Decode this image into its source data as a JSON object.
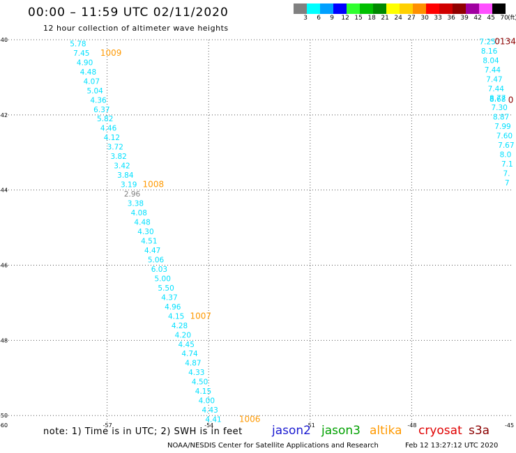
{
  "header": {
    "title": "00:00 – 11:59 UTC 02/11/2020",
    "subtitle": "12 hour collection of altimeter wave heights"
  },
  "color_scale": {
    "unit": "(ft)",
    "bins": [
      {
        "label": "3",
        "color": "#808080"
      },
      {
        "label": "6",
        "color": "#00ffff"
      },
      {
        "label": "9",
        "color": "#00a0ff"
      },
      {
        "label": "12",
        "color": "#0000ff"
      },
      {
        "label": "15",
        "color": "#30ff30"
      },
      {
        "label": "18",
        "color": "#00c000"
      },
      {
        "label": "21",
        "color": "#008800"
      },
      {
        "label": "24",
        "color": "#ffff00"
      },
      {
        "label": "27",
        "color": "#ffd000"
      },
      {
        "label": "30",
        "color": "#ff9000"
      },
      {
        "label": "33",
        "color": "#ff0000"
      },
      {
        "label": "36",
        "color": "#d00000"
      },
      {
        "label": "39",
        "color": "#900000"
      },
      {
        "label": "42",
        "color": "#a000a0"
      },
      {
        "label": "45",
        "color": "#ff50ff"
      },
      {
        "label": "70",
        "color": "#000000"
      }
    ]
  },
  "chart_data": {
    "type": "scatter",
    "axes": {
      "x_ticks": [
        "-57",
        "-54",
        "-51",
        "-48",
        "-45"
      ],
      "y_ticks": [
        "-40",
        "-42",
        "-44",
        "-46",
        "-48",
        "-50"
      ],
      "corner_label": "-60",
      "xlim": [
        -60,
        -45
      ],
      "ylim": [
        -50.2,
        -40
      ]
    },
    "tracks": [
      {
        "satellite": "altika",
        "color": "#00e0ff",
        "points": [
          {
            "lon": -58.1,
            "lat": -40.1,
            "swh": "5.78"
          },
          {
            "lon": -58.0,
            "lat": -40.35,
            "swh": "7.45"
          },
          {
            "lon": -57.9,
            "lat": -40.6,
            "swh": "4.90"
          },
          {
            "lon": -57.8,
            "lat": -40.85,
            "swh": "4.48"
          },
          {
            "lon": -57.7,
            "lat": -41.1,
            "swh": "4.07"
          },
          {
            "lon": -57.6,
            "lat": -41.35,
            "swh": "5.04"
          },
          {
            "lon": -57.5,
            "lat": -41.6,
            "swh": "4.36"
          },
          {
            "lon": -57.4,
            "lat": -41.85,
            "swh": "6.37"
          },
          {
            "lon": -57.3,
            "lat": -42.1,
            "swh": "5.82"
          },
          {
            "lon": -57.2,
            "lat": -42.35,
            "swh": "4.46"
          },
          {
            "lon": -57.1,
            "lat": -42.6,
            "swh": "4.12"
          },
          {
            "lon": -57.0,
            "lat": -42.85,
            "swh": "3.72"
          },
          {
            "lon": -56.9,
            "lat": -43.1,
            "swh": "3.82"
          },
          {
            "lon": -56.8,
            "lat": -43.35,
            "swh": "3.42"
          },
          {
            "lon": -56.7,
            "lat": -43.6,
            "swh": "3.84"
          },
          {
            "lon": -56.6,
            "lat": -43.85,
            "swh": "3.19"
          },
          {
            "lon": -56.5,
            "lat": -44.1,
            "swh": "2.96",
            "color": "#808080"
          },
          {
            "lon": -56.4,
            "lat": -44.35,
            "swh": "3.38"
          },
          {
            "lon": -56.3,
            "lat": -44.6,
            "swh": "4.08"
          },
          {
            "lon": -56.2,
            "lat": -44.85,
            "swh": "4.48"
          },
          {
            "lon": -56.1,
            "lat": -45.1,
            "swh": "4.30"
          },
          {
            "lon": -56.0,
            "lat": -45.35,
            "swh": "4.51"
          },
          {
            "lon": -55.9,
            "lat": -45.6,
            "swh": "4.47"
          },
          {
            "lon": -55.8,
            "lat": -45.85,
            "swh": "5.06"
          },
          {
            "lon": -55.7,
            "lat": -46.1,
            "swh": "6.03"
          },
          {
            "lon": -55.6,
            "lat": -46.35,
            "swh": "5.00"
          },
          {
            "lon": -55.5,
            "lat": -46.6,
            "swh": "5.50"
          },
          {
            "lon": -55.4,
            "lat": -46.85,
            "swh": "4.37"
          },
          {
            "lon": -55.3,
            "lat": -47.1,
            "swh": "4.96"
          },
          {
            "lon": -55.2,
            "lat": -47.35,
            "swh": "4.15"
          },
          {
            "lon": -55.1,
            "lat": -47.6,
            "swh": "4.28"
          },
          {
            "lon": -55.0,
            "lat": -47.85,
            "swh": "4.20"
          },
          {
            "lon": -54.9,
            "lat": -48.1,
            "swh": "4.45"
          },
          {
            "lon": -54.8,
            "lat": -48.35,
            "swh": "4.74"
          },
          {
            "lon": -54.7,
            "lat": -48.6,
            "swh": "4.87"
          },
          {
            "lon": -54.6,
            "lat": -48.85,
            "swh": "4.33"
          },
          {
            "lon": -54.5,
            "lat": -49.1,
            "swh": "4.50"
          },
          {
            "lon": -54.4,
            "lat": -49.35,
            "swh": "4.15"
          },
          {
            "lon": -54.3,
            "lat": -49.6,
            "swh": "4.00"
          },
          {
            "lon": -54.2,
            "lat": -49.85,
            "swh": "4.43"
          },
          {
            "lon": -54.1,
            "lat": -50.1,
            "swh": "4.41"
          }
        ]
      },
      {
        "satellite": "altika",
        "color": "#00e0ff",
        "points": [
          {
            "lon": -46.0,
            "lat": -40.05,
            "swh": "7.25"
          },
          {
            "lon": -45.95,
            "lat": -40.3,
            "swh": "8.16"
          },
          {
            "lon": -45.9,
            "lat": -40.55,
            "swh": "8.04"
          },
          {
            "lon": -45.85,
            "lat": -40.8,
            "swh": "7.44"
          },
          {
            "lon": -45.8,
            "lat": -41.05,
            "swh": "7.47"
          },
          {
            "lon": -45.75,
            "lat": -41.3,
            "swh": "7.44"
          },
          {
            "lon": -45.7,
            "lat": -41.55,
            "swh": "8.77"
          },
          {
            "lon": -45.7,
            "lat": -41.58,
            "swh": "8.68"
          },
          {
            "lon": -45.65,
            "lat": -41.8,
            "swh": "7.30"
          },
          {
            "lon": -45.6,
            "lat": -42.05,
            "swh": "8.87"
          },
          {
            "lon": -45.55,
            "lat": -42.3,
            "swh": "7.99"
          },
          {
            "lon": -45.5,
            "lat": -42.55,
            "swh": "7.60"
          },
          {
            "lon": -45.45,
            "lat": -42.8,
            "swh": "7.67"
          },
          {
            "lon": -45.4,
            "lat": -43.05,
            "swh": "8.0"
          },
          {
            "lon": -45.35,
            "lat": -43.3,
            "swh": "7.1"
          },
          {
            "lon": -45.3,
            "lat": -43.55,
            "swh": "7."
          },
          {
            "lon": -45.25,
            "lat": -43.8,
            "swh": "7"
          }
        ]
      }
    ],
    "pressure_labels": [
      {
        "lon": -57.2,
        "lat": -40.35,
        "text": "1009",
        "color": "#ff9900"
      },
      {
        "lon": -55.95,
        "lat": -43.85,
        "text": "1008",
        "color": "#ff9900"
      },
      {
        "lon": -54.55,
        "lat": -47.35,
        "text": "1007",
        "color": "#ff9900"
      },
      {
        "lon": -53.1,
        "lat": -50.1,
        "text": "1006",
        "color": "#ff9900"
      },
      {
        "lon": -45.55,
        "lat": -40.05,
        "text": "0134",
        "color": "#8b0000"
      },
      {
        "lon": -45.15,
        "lat": -41.6,
        "text": "0",
        "color": "#8b0000"
      }
    ]
  },
  "footer": {
    "note": "note: 1) Time is in UTC; 2) SWH is in feet",
    "satellites": [
      {
        "name": "jason2",
        "color": "#1a1ad0"
      },
      {
        "name": "jason3",
        "color": "#00a000"
      },
      {
        "name": "altika",
        "color": "#ff9900"
      },
      {
        "name": "cryosat",
        "color": "#e00000"
      },
      {
        "name": "s3a",
        "color": "#8b0000"
      }
    ],
    "credit": "NOAA/NESDIS Center for Satellite Applications and Research",
    "timestamp": "Feb 12 13:27:12 UTC 2020"
  }
}
